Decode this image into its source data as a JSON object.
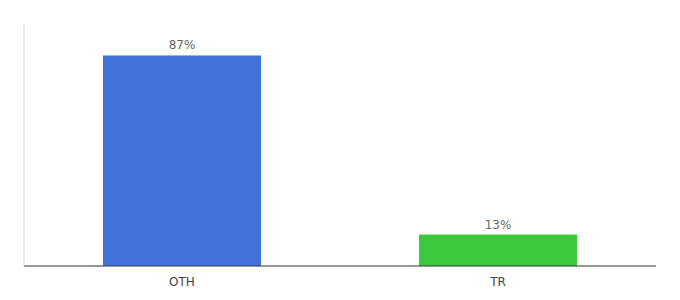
{
  "chart_data": {
    "type": "bar",
    "categories": [
      "OTH",
      "TR"
    ],
    "values": [
      87,
      13
    ],
    "colors": [
      "#4472db",
      "#3dc93d"
    ],
    "ylim": [
      0,
      100
    ],
    "data_labels": true,
    "value_labels": [
      "87%",
      "13%"
    ],
    "tick_labels": "x",
    "grid": false
  }
}
